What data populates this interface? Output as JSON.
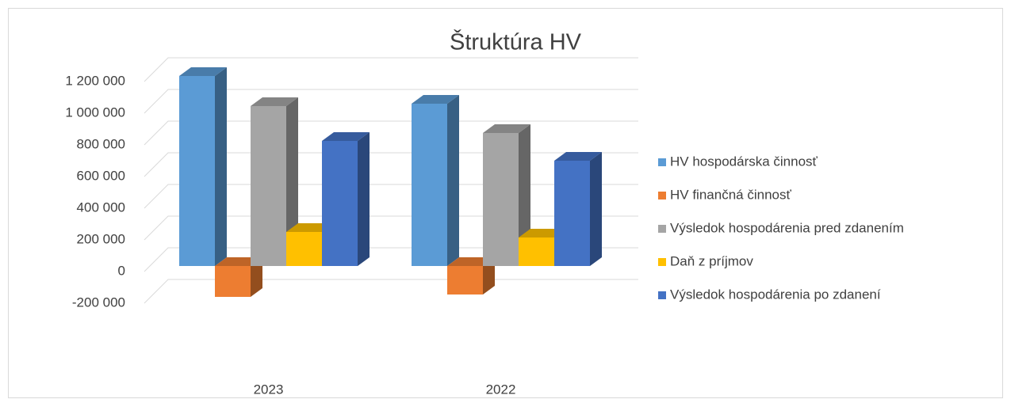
{
  "chart_data": {
    "type": "bar3d",
    "title": "Štruktúra HV",
    "categories": [
      "2023",
      "2022"
    ],
    "series": [
      {
        "name": "HV hospodárska činnosť",
        "color": "#5b9bd5",
        "values": [
          1200000,
          1025000
        ]
      },
      {
        "name": "HV finančná činnosť",
        "color": "#ed7d31",
        "values": [
          -195000,
          -180000
        ]
      },
      {
        "name": "Výsledok hospodárenia pred zdanením",
        "color": "#a5a5a5",
        "values": [
          1010000,
          840000
        ]
      },
      {
        "name": "Daň z príjmov",
        "color": "#ffc000",
        "values": [
          215000,
          180000
        ]
      },
      {
        "name": "Výsledok hospodárenia po zdanení",
        "color": "#4472c4",
        "values": [
          790000,
          665000
        ]
      }
    ],
    "ylim": [
      -200000,
      1200000
    ],
    "yticks": [
      {
        "value": -200000,
        "label": "-200 000"
      },
      0,
      {
        "value": 200000,
        "label": "200 000"
      },
      {
        "value": 400000,
        "label": "400 000"
      },
      {
        "value": 600000,
        "label": "600 000"
      },
      {
        "value": 800000,
        "label": "800 000"
      },
      {
        "value": 1000000,
        "label": "1 000 000"
      },
      {
        "value": 1200000,
        "label": "1 200 000"
      }
    ],
    "grid": true,
    "legend": "right"
  }
}
